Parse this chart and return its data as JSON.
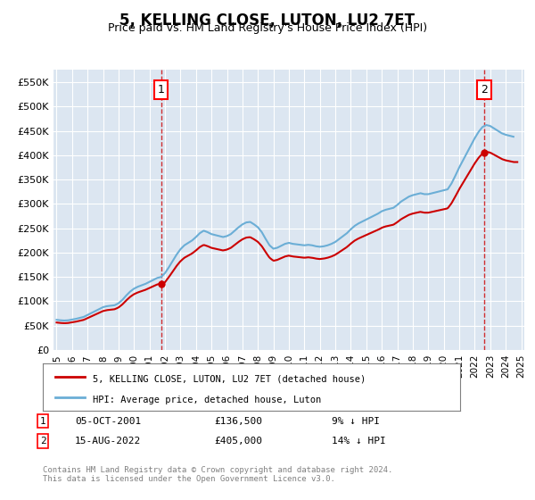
{
  "title": "5, KELLING CLOSE, LUTON, LU2 7ET",
  "subtitle": "Price paid vs. HM Land Registry's House Price Index (HPI)",
  "ylabel": "",
  "xlabel": "",
  "ylim": [
    0,
    575000
  ],
  "yticks": [
    0,
    50000,
    100000,
    150000,
    200000,
    250000,
    300000,
    350000,
    400000,
    450000,
    500000,
    550000
  ],
  "ytick_labels": [
    "£0",
    "£50K",
    "£100K",
    "£150K",
    "£200K",
    "£250K",
    "£300K",
    "£350K",
    "£400K",
    "£450K",
    "£500K",
    "£550K"
  ],
  "background_color": "#dce6f1",
  "plot_bg_color": "#dce6f1",
  "fig_bg_color": "#ffffff",
  "line1_color": "#cc0000",
  "line2_color": "#6baed6",
  "marker_color": "#cc0000",
  "dashed_line_color": "#cc0000",
  "sale1_x": 2001.75,
  "sale1_y": 136500,
  "sale1_label": "1",
  "sale1_date": "05-OCT-2001",
  "sale1_price": "£136,500",
  "sale1_hpi": "9% ↓ HPI",
  "sale2_x": 2022.6,
  "sale2_y": 405000,
  "sale2_label": "2",
  "sale2_date": "15-AUG-2022",
  "sale2_price": "£405,000",
  "sale2_hpi": "14% ↓ HPI",
  "legend1": "5, KELLING CLOSE, LUTON, LU2 7ET (detached house)",
  "legend2": "HPI: Average price, detached house, Luton",
  "footnote": "Contains HM Land Registry data © Crown copyright and database right 2024.\nThis data is licensed under the Open Government Licence v3.0.",
  "hpi_years": [
    1995.0,
    1995.25,
    1995.5,
    1995.75,
    1996.0,
    1996.25,
    1996.5,
    1996.75,
    1997.0,
    1997.25,
    1997.5,
    1997.75,
    1998.0,
    1998.25,
    1998.5,
    1998.75,
    1999.0,
    1999.25,
    1999.5,
    1999.75,
    2000.0,
    2000.25,
    2000.5,
    2000.75,
    2001.0,
    2001.25,
    2001.5,
    2001.75,
    2002.0,
    2002.25,
    2002.5,
    2002.75,
    2003.0,
    2003.25,
    2003.5,
    2003.75,
    2004.0,
    2004.25,
    2004.5,
    2004.75,
    2005.0,
    2005.25,
    2005.5,
    2005.75,
    2006.0,
    2006.25,
    2006.5,
    2006.75,
    2007.0,
    2007.25,
    2007.5,
    2007.75,
    2008.0,
    2008.25,
    2008.5,
    2008.75,
    2009.0,
    2009.25,
    2009.5,
    2009.75,
    2010.0,
    2010.25,
    2010.5,
    2010.75,
    2011.0,
    2011.25,
    2011.5,
    2011.75,
    2012.0,
    2012.25,
    2012.5,
    2012.75,
    2013.0,
    2013.25,
    2013.5,
    2013.75,
    2014.0,
    2014.25,
    2014.5,
    2014.75,
    2015.0,
    2015.25,
    2015.5,
    2015.75,
    2016.0,
    2016.25,
    2016.5,
    2016.75,
    2017.0,
    2017.25,
    2017.5,
    2017.75,
    2018.0,
    2018.25,
    2018.5,
    2018.75,
    2019.0,
    2019.25,
    2019.5,
    2019.75,
    2020.0,
    2020.25,
    2020.5,
    2020.75,
    2021.0,
    2021.25,
    2021.5,
    2021.75,
    2022.0,
    2022.25,
    2022.5,
    2022.75,
    2023.0,
    2023.25,
    2023.5,
    2023.75,
    2024.0,
    2024.25,
    2024.5
  ],
  "hpi_values": [
    62000,
    61000,
    60500,
    61000,
    62500,
    64000,
    66000,
    68000,
    72000,
    76000,
    80000,
    84000,
    88000,
    90000,
    91000,
    92000,
    96000,
    103000,
    112000,
    120000,
    126000,
    130000,
    133000,
    136000,
    140000,
    144000,
    148000,
    150000,
    158000,
    170000,
    183000,
    196000,
    207000,
    215000,
    220000,
    225000,
    232000,
    240000,
    245000,
    242000,
    238000,
    236000,
    234000,
    232000,
    234000,
    238000,
    245000,
    252000,
    258000,
    262000,
    263000,
    258000,
    252000,
    242000,
    228000,
    215000,
    208000,
    210000,
    214000,
    218000,
    220000,
    218000,
    217000,
    216000,
    215000,
    216000,
    215000,
    213000,
    212000,
    213000,
    215000,
    218000,
    222000,
    228000,
    234000,
    240000,
    248000,
    255000,
    260000,
    264000,
    268000,
    272000,
    276000,
    280000,
    285000,
    288000,
    290000,
    292000,
    298000,
    305000,
    310000,
    315000,
    318000,
    320000,
    322000,
    320000,
    320000,
    322000,
    324000,
    326000,
    328000,
    330000,
    342000,
    358000,
    375000,
    390000,
    405000,
    420000,
    435000,
    448000,
    458000,
    462000,
    460000,
    455000,
    450000,
    445000,
    442000,
    440000,
    438000
  ],
  "price_paid_years": [
    1995.5,
    2001.75,
    2022.6
  ],
  "price_paid_values": [
    67000,
    136500,
    405000
  ],
  "xtick_years": [
    1995,
    1996,
    1997,
    1998,
    1999,
    2000,
    2001,
    2002,
    2003,
    2004,
    2005,
    2006,
    2007,
    2008,
    2009,
    2010,
    2011,
    2012,
    2013,
    2014,
    2015,
    2016,
    2017,
    2018,
    2019,
    2020,
    2021,
    2022,
    2023,
    2024,
    2025
  ]
}
